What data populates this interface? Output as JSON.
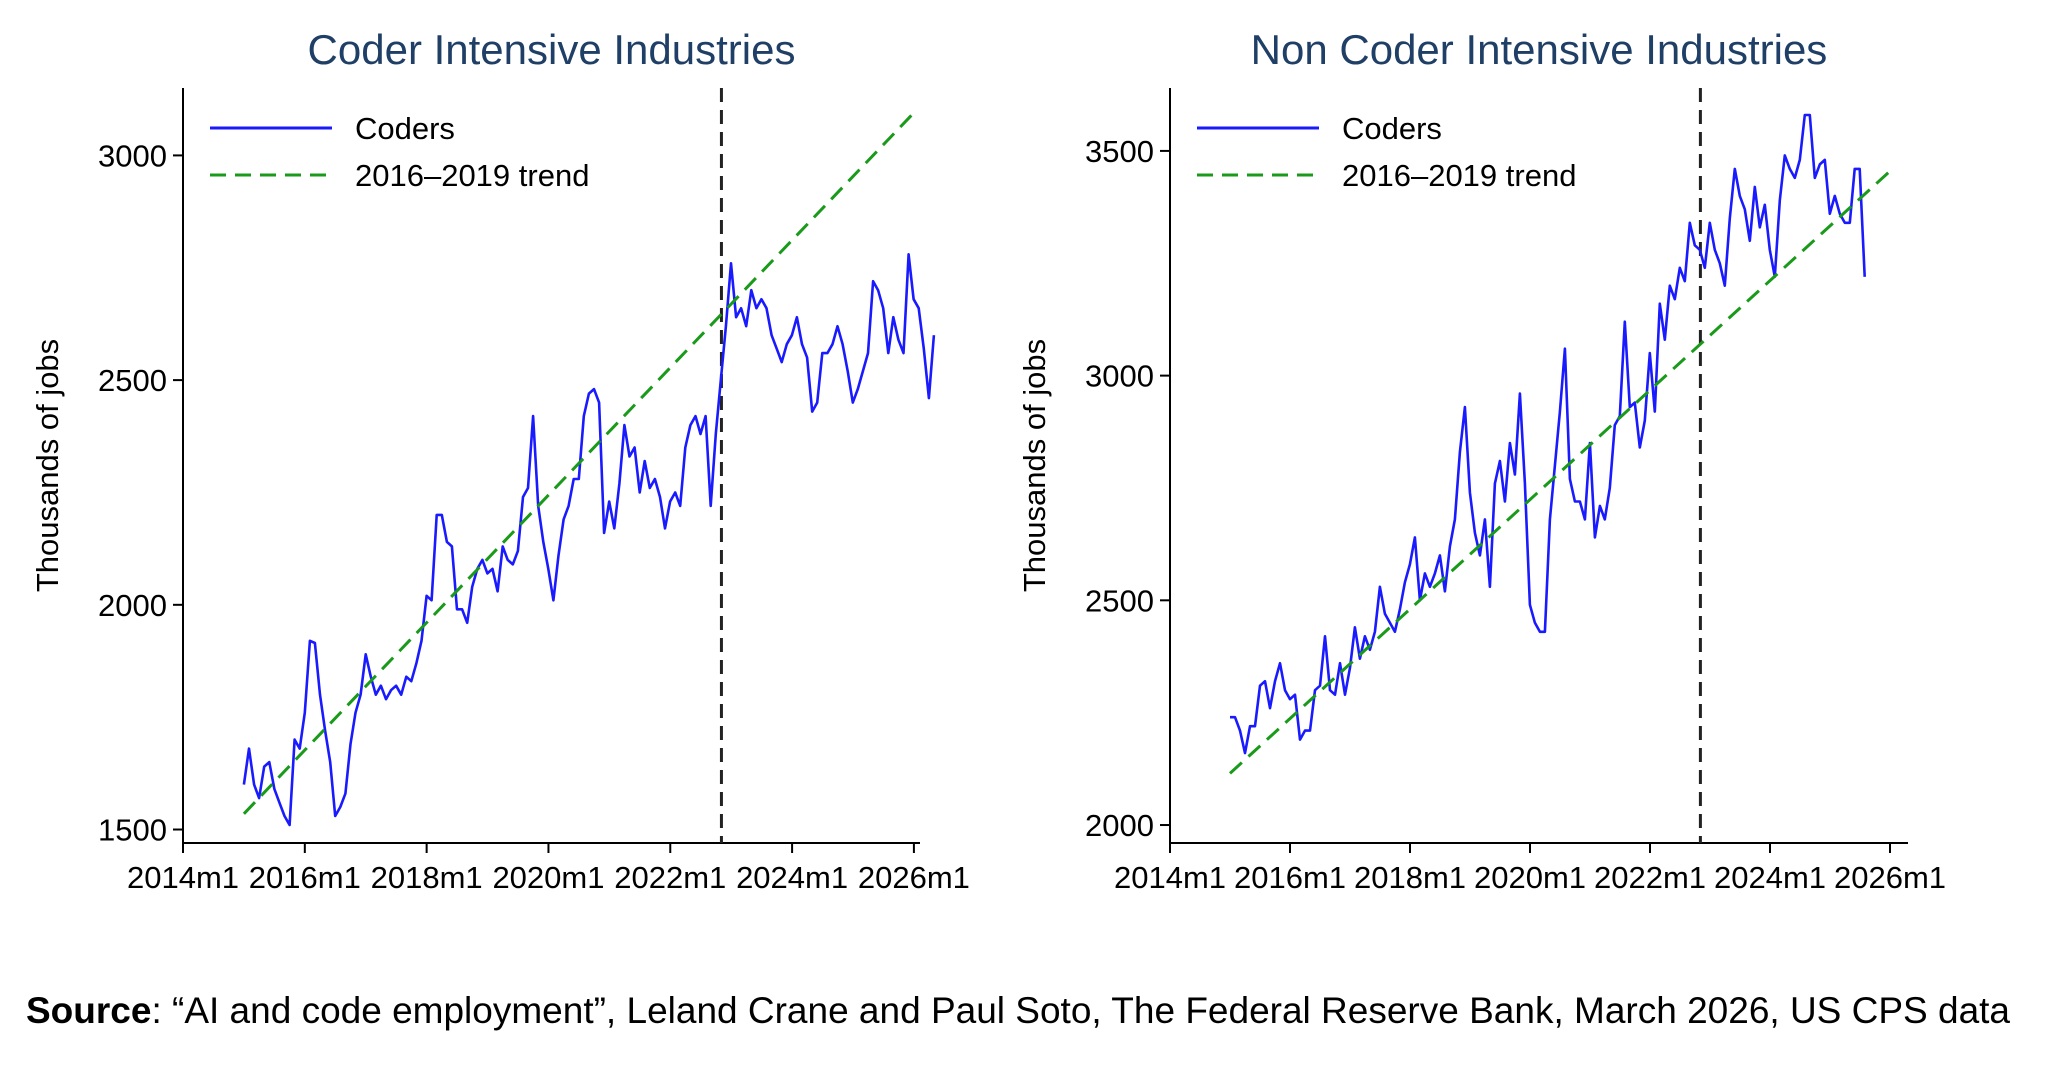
{
  "caption": {
    "source_label": "Source",
    "source_text": ": “AI and code employment”, Leland Crane and Paul Soto, The Federal Reserve Bank, March 2026, US CPS data"
  },
  "colors": {
    "coders_line": "#1a1aff",
    "trend_line": "#1a9a1a",
    "title": "#1f3f66",
    "axis": "#000000",
    "vline": "#222222"
  },
  "chart_data": [
    {
      "type": "line",
      "title": "Coder Intensive Industries",
      "xlabel": "",
      "ylabel": "Thousands of jobs",
      "x_ticks": [
        "2014m1",
        "2016m1",
        "2018m1",
        "2020m1",
        "2022m1",
        "2024m1",
        "2026m1"
      ],
      "x_tick_values": [
        2014,
        2016,
        2018,
        2020,
        2022,
        2024,
        2026
      ],
      "y_ticks": [
        1500,
        2000,
        2500,
        3000
      ],
      "xlim": [
        2014,
        2026.1
      ],
      "ylim": [
        1470,
        3150
      ],
      "vline_x": 2022.84,
      "legend": {
        "position": "top-left",
        "entries": [
          "Coders",
          "2016–2019 trend"
        ]
      },
      "series": [
        {
          "name": "Coders",
          "style": "solid",
          "x_start": 2015.0,
          "x_step": 0.0833,
          "values": [
            1600,
            1680,
            1600,
            1570,
            1640,
            1650,
            1590,
            1560,
            1530,
            1510,
            1700,
            1680,
            1760,
            1920,
            1915,
            1800,
            1720,
            1650,
            1530,
            1550,
            1580,
            1690,
            1760,
            1800,
            1890,
            1840,
            1800,
            1820,
            1790,
            1810,
            1820,
            1800,
            1840,
            1830,
            1870,
            1920,
            2020,
            2010,
            2200,
            2200,
            2140,
            2130,
            1990,
            1990,
            1960,
            2040,
            2080,
            2100,
            2070,
            2080,
            2030,
            2130,
            2100,
            2090,
            2120,
            2240,
            2260,
            2420,
            2220,
            2140,
            2080,
            2010,
            2110,
            2190,
            2220,
            2280,
            2280,
            2420,
            2470,
            2480,
            2450,
            2160,
            2230,
            2170,
            2270,
            2400,
            2330,
            2350,
            2250,
            2320,
            2260,
            2280,
            2240,
            2170,
            2230,
            2250,
            2220,
            2350,
            2400,
            2420,
            2380,
            2420,
            2220,
            2380,
            2500,
            2620,
            2760,
            2640,
            2660,
            2620,
            2700,
            2660,
            2680,
            2660,
            2600,
            2570,
            2540,
            2580,
            2600,
            2640,
            2580,
            2550,
            2430,
            2450,
            2560,
            2560,
            2580,
            2620,
            2580,
            2520,
            2450,
            2480,
            2520,
            2560,
            2720,
            2700,
            2660,
            2560,
            2640,
            2590,
            2560,
            2780,
            2680,
            2660,
            2570,
            2460,
            2600
          ]
        },
        {
          "name": "2016–2019 trend",
          "style": "dashed",
          "x": [
            2015.0,
            2026.0
          ],
          "y": [
            1535,
            3095
          ]
        }
      ]
    },
    {
      "type": "line",
      "title": "Non Coder Intensive Industries",
      "xlabel": "",
      "ylabel": "Thousands of jobs",
      "x_ticks": [
        "2014m1",
        "2016m1",
        "2018m1",
        "2020m1",
        "2022m1",
        "2024m1",
        "2026m1"
      ],
      "x_tick_values": [
        2014,
        2016,
        2018,
        2020,
        2022,
        2024,
        2026
      ],
      "y_ticks": [
        2000,
        2500,
        3000,
        3500
      ],
      "xlim": [
        2014,
        2026.3
      ],
      "ylim": [
        1960,
        3640
      ],
      "vline_x": 2022.84,
      "legend": {
        "position": "top-left",
        "entries": [
          "Coders",
          "2016–2019 trend"
        ]
      },
      "series": [
        {
          "name": "Coders",
          "style": "solid",
          "x_start": 2015.0,
          "x_step": 0.0833,
          "values": [
            2240,
            2240,
            2210,
            2160,
            2220,
            2220,
            2310,
            2320,
            2260,
            2320,
            2360,
            2300,
            2280,
            2290,
            2190,
            2210,
            2210,
            2300,
            2310,
            2420,
            2300,
            2290,
            2360,
            2290,
            2350,
            2440,
            2370,
            2420,
            2390,
            2430,
            2530,
            2470,
            2450,
            2430,
            2480,
            2540,
            2580,
            2640,
            2500,
            2560,
            2530,
            2560,
            2600,
            2520,
            2620,
            2680,
            2830,
            2930,
            2740,
            2650,
            2600,
            2680,
            2530,
            2760,
            2810,
            2720,
            2850,
            2780,
            2960,
            2760,
            2490,
            2450,
            2430,
            2430,
            2680,
            2800,
            2920,
            3060,
            2770,
            2720,
            2720,
            2680,
            2850,
            2640,
            2710,
            2680,
            2750,
            2890,
            2910,
            3120,
            2930,
            2940,
            2840,
            2900,
            3050,
            2920,
            3160,
            3080,
            3200,
            3170,
            3240,
            3210,
            3340,
            3290,
            3280,
            3240,
            3340,
            3280,
            3250,
            3200,
            3350,
            3460,
            3400,
            3370,
            3300,
            3420,
            3330,
            3380,
            3280,
            3220,
            3390,
            3490,
            3460,
            3440,
            3480,
            3580,
            3580,
            3440,
            3470,
            3480,
            3360,
            3400,
            3360,
            3340,
            3340,
            3460,
            3460,
            3220
          ]
        },
        {
          "name": "2016–2019 trend",
          "style": "dashed",
          "x": [
            2015.0,
            2026.0
          ],
          "y": [
            2115,
            3455
          ]
        }
      ]
    }
  ]
}
